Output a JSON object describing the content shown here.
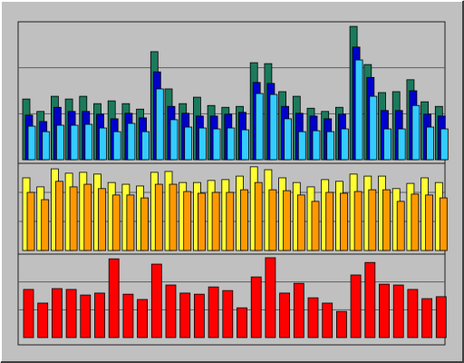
{
  "chart_data": [
    {
      "type": "bar",
      "grid": true,
      "ylim": [
        0,
        30
      ],
      "yticks": [
        10,
        20
      ],
      "series": [
        {
          "color": "#1b7a5c",
          "values": [
            13.2,
            10.5,
            13.8,
            13.2,
            13.8,
            12.2,
            12.8,
            12.2,
            11.0,
            23.5,
            15.4,
            12.2,
            13.6,
            11.8,
            11.4,
            11.6,
            21.1,
            20.9,
            14.8,
            13.8,
            11.2,
            10.5,
            11.4,
            29.0,
            20.7,
            14.6,
            14.8,
            17.4,
            12.6,
            11.6
          ]
        },
        {
          "color": "#0000cc",
          "values": [
            9.7,
            8.3,
            11.4,
            10.5,
            10.5,
            9.9,
            8.9,
            10.1,
            9.1,
            19.1,
            11.6,
            10.1,
            9.5,
            9.5,
            9.9,
            10.3,
            16.8,
            16.6,
            11.6,
            10.1,
            9.5,
            8.9,
            9.9,
            24.5,
            17.9,
            10.7,
            10.7,
            15.0,
            9.9,
            9.5
          ]
        },
        {
          "color": "#33ccff",
          "values": [
            7.3,
            6.1,
            7.5,
            7.5,
            7.7,
            6.9,
            6.1,
            7.9,
            6.1,
            15.4,
            8.7,
            7.1,
            6.9,
            6.7,
            6.9,
            6.5,
            14.4,
            14.2,
            8.9,
            6.1,
            6.3,
            6.1,
            6.7,
            21.7,
            13.8,
            6.7,
            6.7,
            11.8,
            7.1,
            6.7
          ]
        }
      ]
    },
    {
      "type": "bar",
      "grid": true,
      "ylim": [
        0,
        30
      ],
      "yticks": [
        10,
        20
      ],
      "series": [
        {
          "color": "#ffff33",
          "values": [
            25,
            21.9,
            28.1,
            26.6,
            26.9,
            26.3,
            23.4,
            22.8,
            22.2,
            26.9,
            27.2,
            23.4,
            23.4,
            24.1,
            24.4,
            25.6,
            28.8,
            27.8,
            25,
            23.4,
            21.9,
            24.4,
            23.8,
            26.3,
            25.6,
            25.6,
            21.3,
            23.1,
            25,
            23.4
          ]
        },
        {
          "color": "#ff9900",
          "values": [
            20,
            17.5,
            23.8,
            21.9,
            22.8,
            21.3,
            19.1,
            19.1,
            18.1,
            22.8,
            22.8,
            20.3,
            19.7,
            20,
            20,
            20.9,
            23.4,
            20.9,
            20.6,
            19.1,
            16.9,
            20,
            19.7,
            20.3,
            20.9,
            20.9,
            16.9,
            19.4,
            19.1,
            18.1
          ]
        }
      ]
    },
    {
      "type": "bar",
      "grid": true,
      "ylim": [
        0,
        30
      ],
      "yticks": [
        10,
        20
      ],
      "series": [
        {
          "color": "#ff0000",
          "values": [
            17.3,
            12.4,
            17.6,
            17.3,
            15.3,
            16,
            28.3,
            15.6,
            13.7,
            26.4,
            18.9,
            16,
            15.6,
            18.2,
            16.9,
            10.7,
            21.8,
            28.7,
            16,
            19.5,
            14.3,
            12.4,
            9.4,
            22.5,
            27,
            19.2,
            18.9,
            17.3,
            14,
            14.7
          ]
        }
      ]
    }
  ]
}
